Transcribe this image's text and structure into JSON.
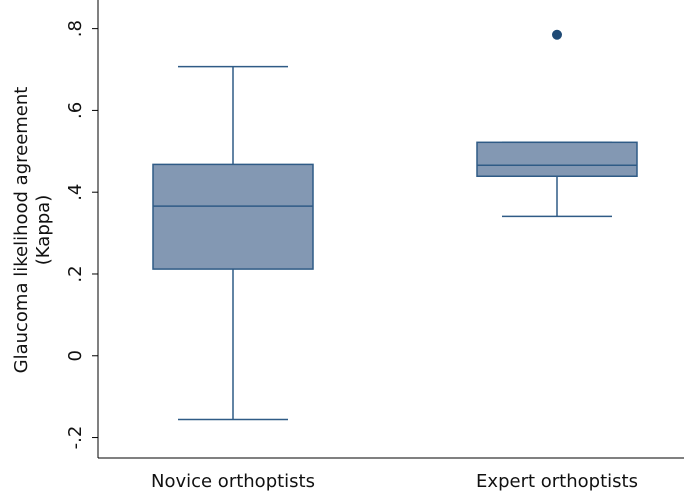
{
  "chart_data": {
    "type": "box",
    "ylabel": [
      "Glaucoma likelihood agreement",
      "(Kappa)"
    ],
    "categories": [
      "Novice orthoptists",
      "Expert orthoptists"
    ],
    "whisker_low": [
      -0.156,
      0.341
    ],
    "q1": [
      0.212,
      0.439
    ],
    "median": [
      0.366,
      0.466
    ],
    "q3": [
      0.468,
      0.522
    ],
    "whisker_high": [
      0.707,
      0.522
    ],
    "outliers": [
      [],
      [
        0.785
      ]
    ],
    "color": "#8398b3",
    "line_color": "#2f5b86",
    "outlier_color": "#1f4a75",
    "ylim": [
      -0.25,
      0.87
    ],
    "yticks": [
      {
        "value": -0.2,
        "label": "-.2"
      },
      0,
      {
        "value": 0.2,
        "label": ".2"
      },
      {
        "value": 0.4,
        "label": ".4"
      },
      {
        "value": 0.6,
        "label": ".6"
      },
      {
        "value": 0.8,
        "label": ".8"
      }
    ]
  }
}
